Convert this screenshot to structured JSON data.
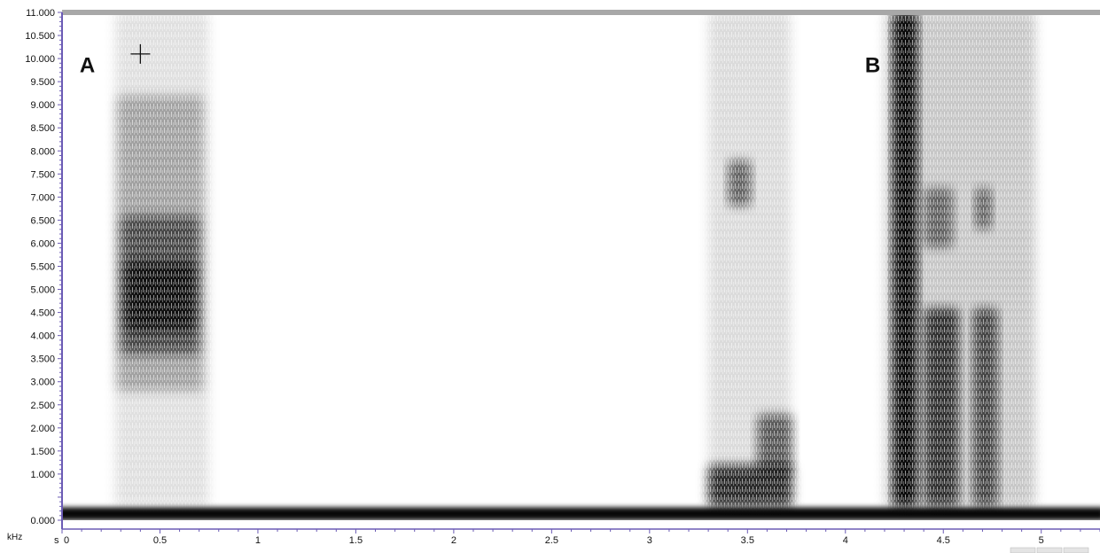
{
  "chart_data": {
    "type": "heatmap",
    "title": "",
    "xlabel": "s",
    "ylabel": "kHz",
    "xlim": [
      0,
      5.3
    ],
    "ylim": [
      0,
      11
    ],
    "y_ticks": [
      {
        "value": 0,
        "label": "0.000"
      },
      {
        "value": 1,
        "label": "1.000"
      },
      {
        "value": 1.5,
        "label": "1.500"
      },
      {
        "value": 2,
        "label": "2.000"
      },
      {
        "value": 2.5,
        "label": "2.500"
      },
      {
        "value": 3,
        "label": "3.000"
      },
      {
        "value": 3.5,
        "label": "3.500"
      },
      {
        "value": 4,
        "label": "4.000"
      },
      {
        "value": 4.5,
        "label": "4.500"
      },
      {
        "value": 5,
        "label": "5.000"
      },
      {
        "value": 5.5,
        "label": "5.500"
      },
      {
        "value": 6,
        "label": "6.000"
      },
      {
        "value": 6.5,
        "label": "6.500"
      },
      {
        "value": 7,
        "label": "7.000"
      },
      {
        "value": 7.5,
        "label": "7.500"
      },
      {
        "value": 8,
        "label": "8.000"
      },
      {
        "value": 8.5,
        "label": "8.500"
      },
      {
        "value": 9,
        "label": "9.000"
      },
      {
        "value": 9.5,
        "label": "9.500"
      },
      {
        "value": 10,
        "label": "10.000"
      },
      {
        "value": 10.5,
        "label": "10.500"
      },
      {
        "value": 11,
        "label": "11.000"
      }
    ],
    "x_ticks": [
      {
        "value": 0,
        "label": "0"
      },
      {
        "value": 0.5,
        "label": "0.5"
      },
      {
        "value": 1,
        "label": "1"
      },
      {
        "value": 1.5,
        "label": "1.5"
      },
      {
        "value": 2,
        "label": "2"
      },
      {
        "value": 2.5,
        "label": "2.5"
      },
      {
        "value": 3,
        "label": "3"
      },
      {
        "value": 3.5,
        "label": "3.5"
      },
      {
        "value": 4,
        "label": "4"
      },
      {
        "value": 4.5,
        "label": "4.5"
      },
      {
        "value": 5,
        "label": "5"
      }
    ],
    "panel_labels": [
      {
        "text": "A",
        "x": 0.09,
        "y": 9.7
      },
      {
        "text": "B",
        "x": 4.1,
        "y": 9.7
      }
    ],
    "cursor_marker": {
      "x": 0.4,
      "y": 10.1
    },
    "energy_regions": [
      {
        "t_start": 0.27,
        "t_end": 0.75,
        "f_low": 0.3,
        "f_high": 11.0,
        "intensity": 0.12
      },
      {
        "t_start": 0.28,
        "t_end": 0.72,
        "f_low": 2.8,
        "f_high": 9.2,
        "intensity": 0.28
      },
      {
        "t_start": 0.3,
        "t_end": 0.7,
        "f_low": 3.6,
        "f_high": 6.6,
        "intensity": 0.55
      },
      {
        "t_start": 0.32,
        "t_end": 0.68,
        "f_low": 4.1,
        "f_high": 5.6,
        "intensity": 0.75
      },
      {
        "t_start": 3.3,
        "t_end": 3.72,
        "f_low": 0.3,
        "f_high": 11.0,
        "intensity": 0.14
      },
      {
        "t_start": 3.4,
        "t_end": 3.52,
        "f_low": 6.8,
        "f_high": 7.8,
        "intensity": 0.55
      },
      {
        "t_start": 3.3,
        "t_end": 3.73,
        "f_low": 0.3,
        "f_high": 1.2,
        "intensity": 0.8
      },
      {
        "t_start": 3.55,
        "t_end": 3.73,
        "f_low": 1.0,
        "f_high": 2.3,
        "intensity": 0.6
      },
      {
        "t_start": 4.2,
        "t_end": 4.97,
        "f_low": 0.3,
        "f_high": 11.0,
        "intensity": 0.22
      },
      {
        "t_start": 4.24,
        "t_end": 4.37,
        "f_low": 0.3,
        "f_high": 11.0,
        "intensity": 0.95
      },
      {
        "t_start": 4.4,
        "t_end": 4.58,
        "f_low": 0.3,
        "f_high": 4.6,
        "intensity": 0.75
      },
      {
        "t_start": 4.4,
        "t_end": 4.55,
        "f_low": 5.9,
        "f_high": 7.2,
        "intensity": 0.5
      },
      {
        "t_start": 4.65,
        "t_end": 4.78,
        "f_low": 0.3,
        "f_high": 4.6,
        "intensity": 0.65
      },
      {
        "t_start": 4.66,
        "t_end": 4.75,
        "f_low": 6.3,
        "f_high": 7.2,
        "intensity": 0.5
      }
    ],
    "baseline_band": {
      "f_low": 0.0,
      "f_high": 0.28,
      "intensity": 0.97
    },
    "grid": false
  }
}
